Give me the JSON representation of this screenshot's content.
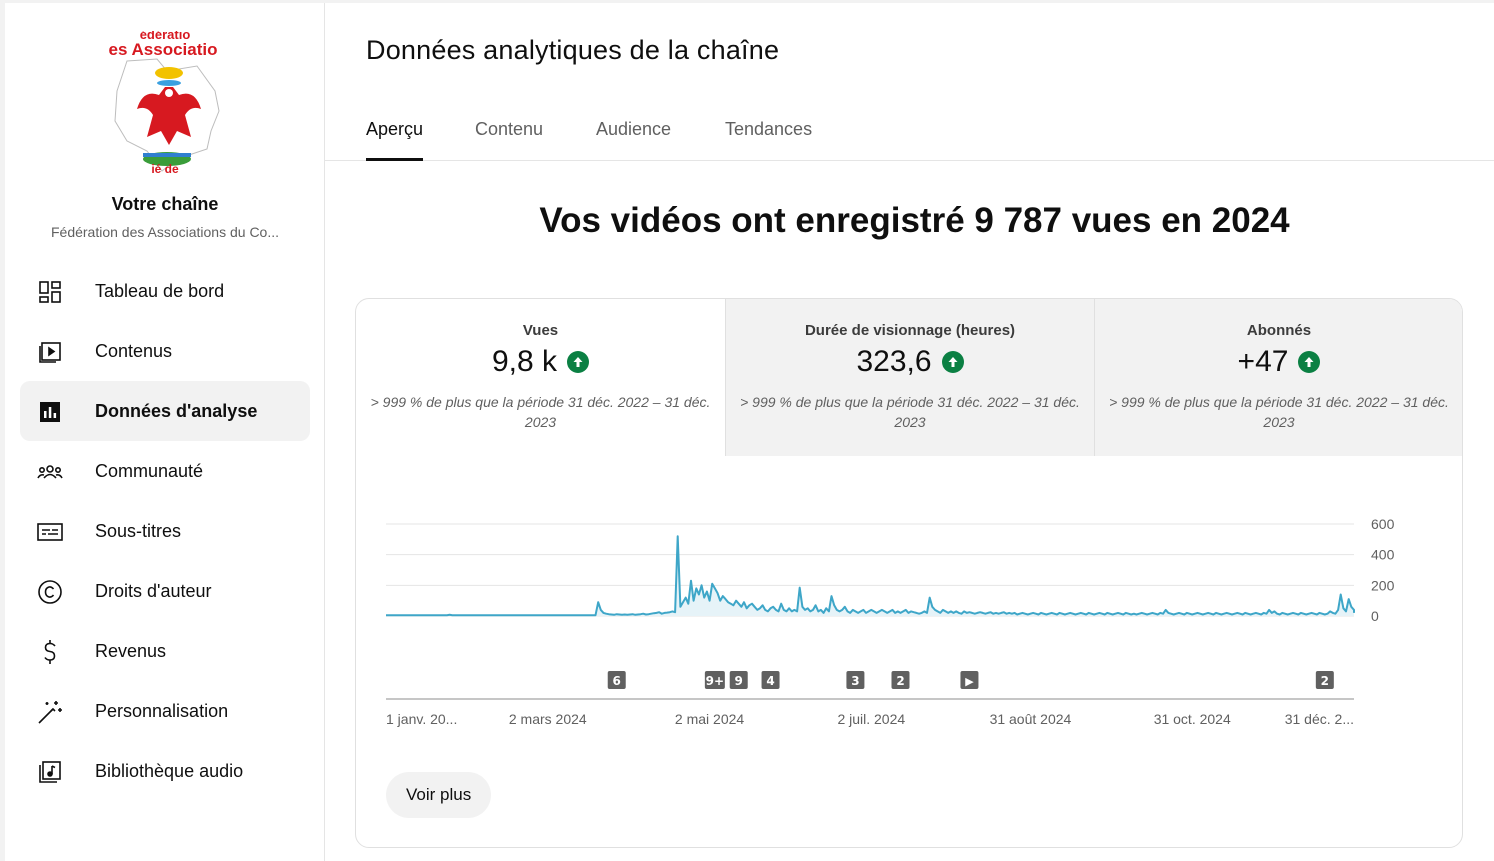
{
  "sidebar": {
    "channel_title": "Votre chaîne",
    "channel_subtitle": "Fédération des Associations du Co...",
    "logo_text_top": "édératio",
    "logo_text_main": "es Associatio",
    "items": [
      {
        "label": "Tableau de bord",
        "icon": "dashboard-icon",
        "active": false
      },
      {
        "label": "Contenus",
        "icon": "content-icon",
        "active": false
      },
      {
        "label": "Données d'analyse",
        "icon": "analytics-icon",
        "active": true
      },
      {
        "label": "Communauté",
        "icon": "community-icon",
        "active": false
      },
      {
        "label": "Sous-titres",
        "icon": "subtitles-icon",
        "active": false
      },
      {
        "label": "Droits d'auteur",
        "icon": "copyright-icon",
        "active": false
      },
      {
        "label": "Revenus",
        "icon": "dollar-icon",
        "active": false
      },
      {
        "label": "Personnalisation",
        "icon": "magic-wand-icon",
        "active": false
      },
      {
        "label": "Bibliothèque audio",
        "icon": "audio-library-icon",
        "active": false
      }
    ]
  },
  "main": {
    "title": "Données analytiques de la chaîne",
    "tabs": [
      {
        "label": "Aperçu",
        "active": true
      },
      {
        "label": "Contenu",
        "active": false
      },
      {
        "label": "Audience",
        "active": false
      },
      {
        "label": "Tendances",
        "active": false
      }
    ],
    "headline": "Vos vidéos ont enregistré 9 787 vues en 2024",
    "metrics": [
      {
        "label": "Vues",
        "value": "9,8 k",
        "compare": "> 999 % de plus que la période 31 déc. 2022 – 31 déc. 2023",
        "selected": true
      },
      {
        "label": "Durée de visionnage (heures)",
        "value": "323,6",
        "compare": "> 999 % de plus que la période 31 déc. 2022 – 31 déc. 2023",
        "selected": false
      },
      {
        "label": "Abonnés",
        "value": "+47",
        "compare": "> 999 % de plus que la période 31 déc. 2022 – 31 déc. 2023",
        "selected": false
      }
    ],
    "see_more": "Voir plus"
  },
  "colors": {
    "line": "#3ea6c8",
    "area": "#e6f3f8",
    "positive": "#0b8043",
    "marker": "#606060"
  },
  "chart_data": {
    "type": "line",
    "series": [
      {
        "values": [
          5,
          5,
          5,
          5,
          5,
          5,
          5,
          5,
          5,
          5,
          5,
          5,
          5,
          5,
          5,
          5,
          5,
          5,
          5,
          5,
          5,
          5,
          5,
          5,
          8,
          5,
          5,
          5,
          5,
          5,
          5,
          5,
          5,
          5,
          5,
          5,
          5,
          5,
          5,
          5,
          5,
          5,
          5,
          5,
          5,
          5,
          5,
          5,
          5,
          5,
          5,
          5,
          5,
          5,
          5,
          5,
          5,
          5,
          5,
          5,
          5,
          5,
          5,
          5,
          5,
          5,
          5,
          5,
          5,
          5,
          5,
          5,
          5,
          5,
          5,
          5,
          5,
          5,
          5,
          5,
          90,
          40,
          20,
          15,
          12,
          10,
          8,
          12,
          10,
          8,
          10,
          8,
          10,
          12,
          8,
          10,
          12,
          15,
          10,
          12,
          15,
          18,
          20,
          25,
          15,
          20,
          22,
          25,
          30,
          25,
          520,
          60,
          90,
          120,
          80,
          230,
          100,
          180,
          140,
          200,
          120,
          160,
          100,
          210,
          180,
          150,
          100,
          130,
          110,
          90,
          80,
          70,
          100,
          80,
          60,
          90,
          50,
          70,
          80,
          60,
          40,
          50,
          70,
          40,
          30,
          50,
          60,
          40,
          30,
          80,
          40,
          30,
          50,
          30,
          40,
          30,
          185,
          60,
          40,
          50,
          30,
          40,
          70,
          30,
          40,
          20,
          50,
          30,
          130,
          70,
          40,
          30,
          40,
          60,
          30,
          20,
          40,
          30,
          20,
          30,
          40,
          20,
          30,
          40,
          30,
          20,
          30,
          40,
          30,
          20,
          30,
          40,
          20,
          30,
          20,
          30,
          40,
          20,
          30,
          25,
          20,
          15,
          20,
          30,
          20,
          120,
          60,
          40,
          30,
          20,
          40,
          30,
          20,
          30,
          20,
          30,
          20,
          15,
          30,
          20,
          25,
          20,
          15,
          20,
          25,
          20,
          15,
          20,
          25,
          15,
          20,
          15,
          20,
          25,
          15,
          20,
          15,
          20,
          10,
          15,
          20,
          15,
          10,
          15,
          20,
          15,
          10,
          20,
          15,
          10,
          15,
          20,
          15,
          10,
          20,
          15,
          10,
          15,
          20,
          15,
          10,
          15,
          20,
          15,
          10,
          20,
          15,
          10,
          15,
          20,
          15,
          10,
          20,
          15,
          10,
          15,
          20,
          15,
          10,
          20,
          15,
          10,
          15,
          10,
          15,
          20,
          15,
          10,
          15,
          20,
          15,
          10,
          20,
          15,
          40,
          20,
          15,
          10,
          15,
          20,
          15,
          10,
          20,
          15,
          10,
          15,
          20,
          15,
          10,
          15,
          20,
          15,
          10,
          20,
          15,
          10,
          15,
          20,
          15,
          10,
          15,
          20,
          15,
          10,
          20,
          15,
          10,
          15,
          20,
          15,
          10,
          20,
          15,
          40,
          20,
          30,
          15,
          10,
          20,
          15,
          10,
          15,
          20,
          15,
          10,
          20,
          15,
          10,
          15,
          20,
          15,
          10,
          20,
          15,
          10,
          15,
          30,
          20,
          15,
          40,
          140,
          50,
          30,
          110,
          60,
          40,
          20
        ]
      }
    ],
    "x_tick_labels": [
      "1 janv. 20...",
      "2 mars 2024",
      "2 mai 2024",
      "2 juil. 2024",
      "31 août 2024",
      "31 oct. 2024",
      "31 déc. 2..."
    ],
    "x_tick_index": [
      0,
      61,
      122,
      183,
      243,
      304,
      365
    ],
    "ylim": [
      0,
      600
    ],
    "y_ticks": [
      0,
      200,
      400,
      600
    ],
    "markers": [
      {
        "label": "6",
        "index": 87
      },
      {
        "label": "9+",
        "index": 124
      },
      {
        "label": "9",
        "index": 133
      },
      {
        "label": "4",
        "index": 145
      },
      {
        "label": "3",
        "index": 177
      },
      {
        "label": "2",
        "index": 194
      },
      {
        "label": "▶",
        "index": 220
      },
      {
        "label": "2",
        "index": 354
      }
    ],
    "grid": true,
    "legend": "none"
  }
}
